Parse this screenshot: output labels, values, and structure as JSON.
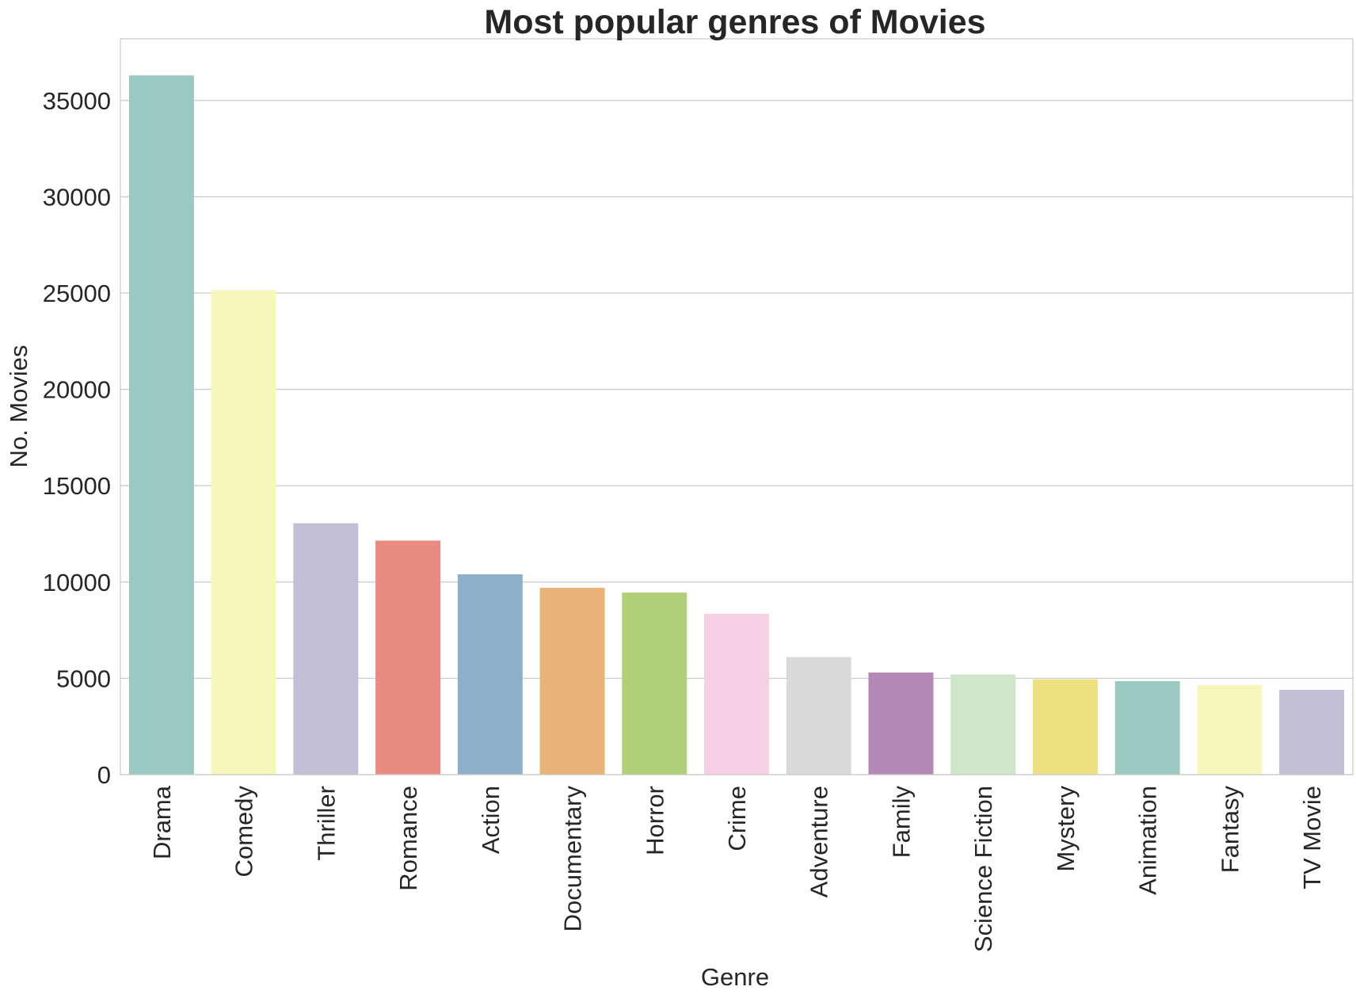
{
  "chart_data": {
    "type": "bar",
    "title": "Most popular genres of Movies",
    "xlabel": "Genre",
    "ylabel": "No. Movies",
    "categories": [
      "Drama",
      "Comedy",
      "Thriller",
      "Romance",
      "Action",
      "Documentary",
      "Horror",
      "Crime",
      "Adventure",
      "Family",
      "Science Fiction",
      "Mystery",
      "Animation",
      "Fantasy",
      "TV Movie"
    ],
    "values": [
      36300,
      25150,
      13050,
      12150,
      10400,
      9700,
      9450,
      8350,
      6100,
      5300,
      5200,
      4950,
      4850,
      4650,
      4400
    ],
    "colors": [
      "#99c9c1",
      "#f7f6bb",
      "#c2bed6",
      "#e98b80",
      "#8cafca",
      "#e9b276",
      "#b0cf77",
      "#f5d1e3",
      "#d9d9d9",
      "#b488b6",
      "#d0e5ca",
      "#ede07e",
      "#99c9c1",
      "#f7f6bb",
      "#c2bed6"
    ],
    "yticks": [
      0,
      5000,
      10000,
      15000,
      20000,
      25000,
      30000,
      35000
    ],
    "ylim": [
      0,
      38200
    ],
    "grid": true,
    "legend": "none"
  }
}
